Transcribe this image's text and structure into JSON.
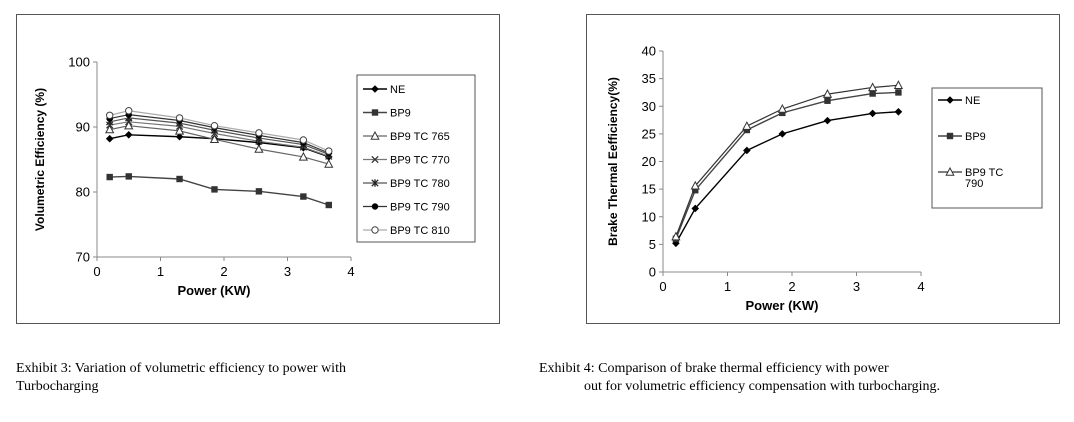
{
  "chart_data": [
    {
      "type": "line",
      "xlabel": "Power (KW)",
      "ylabel": "Volumetric Efficiency (%)",
      "xlim": [
        0,
        4
      ],
      "ylim": [
        70,
        100
      ],
      "xticks": [
        "0",
        "1",
        "2",
        "3",
        "4"
      ],
      "yticks": [
        "70",
        "80",
        "90",
        "100"
      ],
      "legend_position": "right",
      "x": [
        0.2,
        0.5,
        1.3,
        1.85,
        2.55,
        3.25,
        3.65
      ],
      "series": [
        {
          "name": "NE",
          "marker": "diamond",
          "values": [
            88.2,
            88.8,
            88.5,
            88.2,
            87.6,
            86.8,
            85.4
          ]
        },
        {
          "name": "BP9",
          "marker": "square",
          "values": [
            82.3,
            82.4,
            82.0,
            80.4,
            80.1,
            79.3,
            78.0
          ]
        },
        {
          "name": "BP9 TC 765",
          "marker": "triangle",
          "values": [
            89.6,
            90.2,
            89.4,
            88.1,
            86.6,
            85.4,
            84.3
          ]
        },
        {
          "name": "BP9 TC 770",
          "marker": "x",
          "values": [
            90.3,
            90.8,
            90.1,
            89.0,
            87.8,
            86.9,
            85.5
          ]
        },
        {
          "name": "BP9 TC 780",
          "marker": "asterisk",
          "values": [
            90.8,
            91.4,
            90.6,
            89.5,
            88.3,
            87.3,
            85.8
          ]
        },
        {
          "name": "BP9 TC 790",
          "marker": "circle",
          "values": [
            91.3,
            91.9,
            91.0,
            89.9,
            88.7,
            87.6,
            86.0
          ]
        },
        {
          "name": "BP9 TC 810",
          "marker": "circle-open",
          "values": [
            91.8,
            92.5,
            91.4,
            90.2,
            89.1,
            88.0,
            86.3
          ]
        }
      ]
    },
    {
      "type": "line",
      "xlabel": "Power (KW)",
      "ylabel": "Brake Thermal Eefficiency(%)",
      "xlim": [
        0,
        4
      ],
      "ylim": [
        0,
        40
      ],
      "xticks": [
        "0",
        "1",
        "2",
        "3",
        "4"
      ],
      "yticks": [
        "0",
        "5",
        "10",
        "15",
        "20",
        "25",
        "30",
        "35",
        "40"
      ],
      "legend_position": "right",
      "x": [
        0.2,
        0.5,
        1.3,
        1.85,
        2.55,
        3.25,
        3.65
      ],
      "series": [
        {
          "name": "NE",
          "marker": "diamond",
          "values": [
            5.2,
            11.5,
            22.0,
            25.0,
            27.4,
            28.7,
            29.0
          ]
        },
        {
          "name": "BP9",
          "marker": "square",
          "values": [
            6.0,
            14.8,
            25.7,
            28.8,
            31.0,
            32.3,
            32.5
          ]
        },
        {
          "name": "BP9 TC 790",
          "marker": "triangle",
          "values": [
            6.4,
            15.6,
            26.4,
            29.5,
            32.2,
            33.4,
            33.8
          ]
        }
      ]
    }
  ],
  "captions": {
    "left_line1": "Exhibit 3: Variation of volumetric efficiency to power with",
    "left_line2": "Turbocharging",
    "right_line1": "Exhibit 4: Comparison of brake thermal efficiency with power",
    "right_line2": "out for volumetric efficiency compensation with turbocharging."
  }
}
